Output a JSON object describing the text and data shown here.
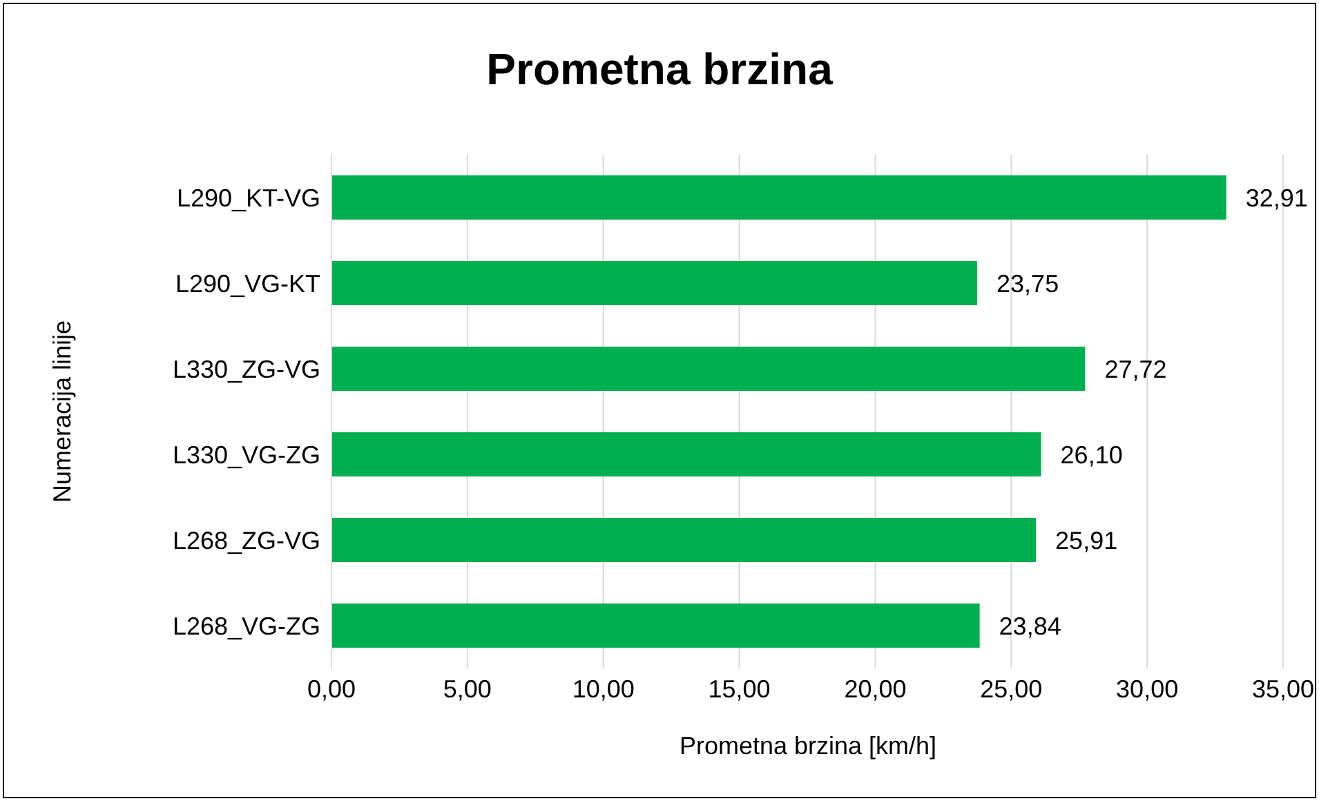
{
  "chart_data": {
    "type": "bar",
    "orientation": "horizontal",
    "title": "Prometna brzina",
    "xlabel": "Prometna brzina [km/h]",
    "ylabel": "Numeracija linije",
    "categories": [
      "L290_KT-VG",
      "L290_VG-KT",
      "L330_ZG-VG",
      "L330_VG-ZG",
      "L268_ZG-VG",
      "L268_VG-ZG"
    ],
    "values": [
      32.91,
      23.75,
      27.72,
      26.1,
      25.91,
      23.84
    ],
    "value_labels": [
      "32,91",
      "23,75",
      "27,72",
      "26,10",
      "25,91",
      "23,84"
    ],
    "color": "#00b050",
    "xlim": [
      0,
      35
    ],
    "xticks": [
      {
        "value": 0,
        "label": "0,00"
      },
      {
        "value": 5,
        "label": "5,00"
      },
      {
        "value": 10,
        "label": "10,00"
      },
      {
        "value": 15,
        "label": "15,00"
      },
      {
        "value": 20,
        "label": "20,00"
      },
      {
        "value": 25,
        "label": "25,00"
      },
      {
        "value": 30,
        "label": "30,00"
      },
      {
        "value": 35,
        "label": "35,00"
      }
    ],
    "grid": "x"
  }
}
